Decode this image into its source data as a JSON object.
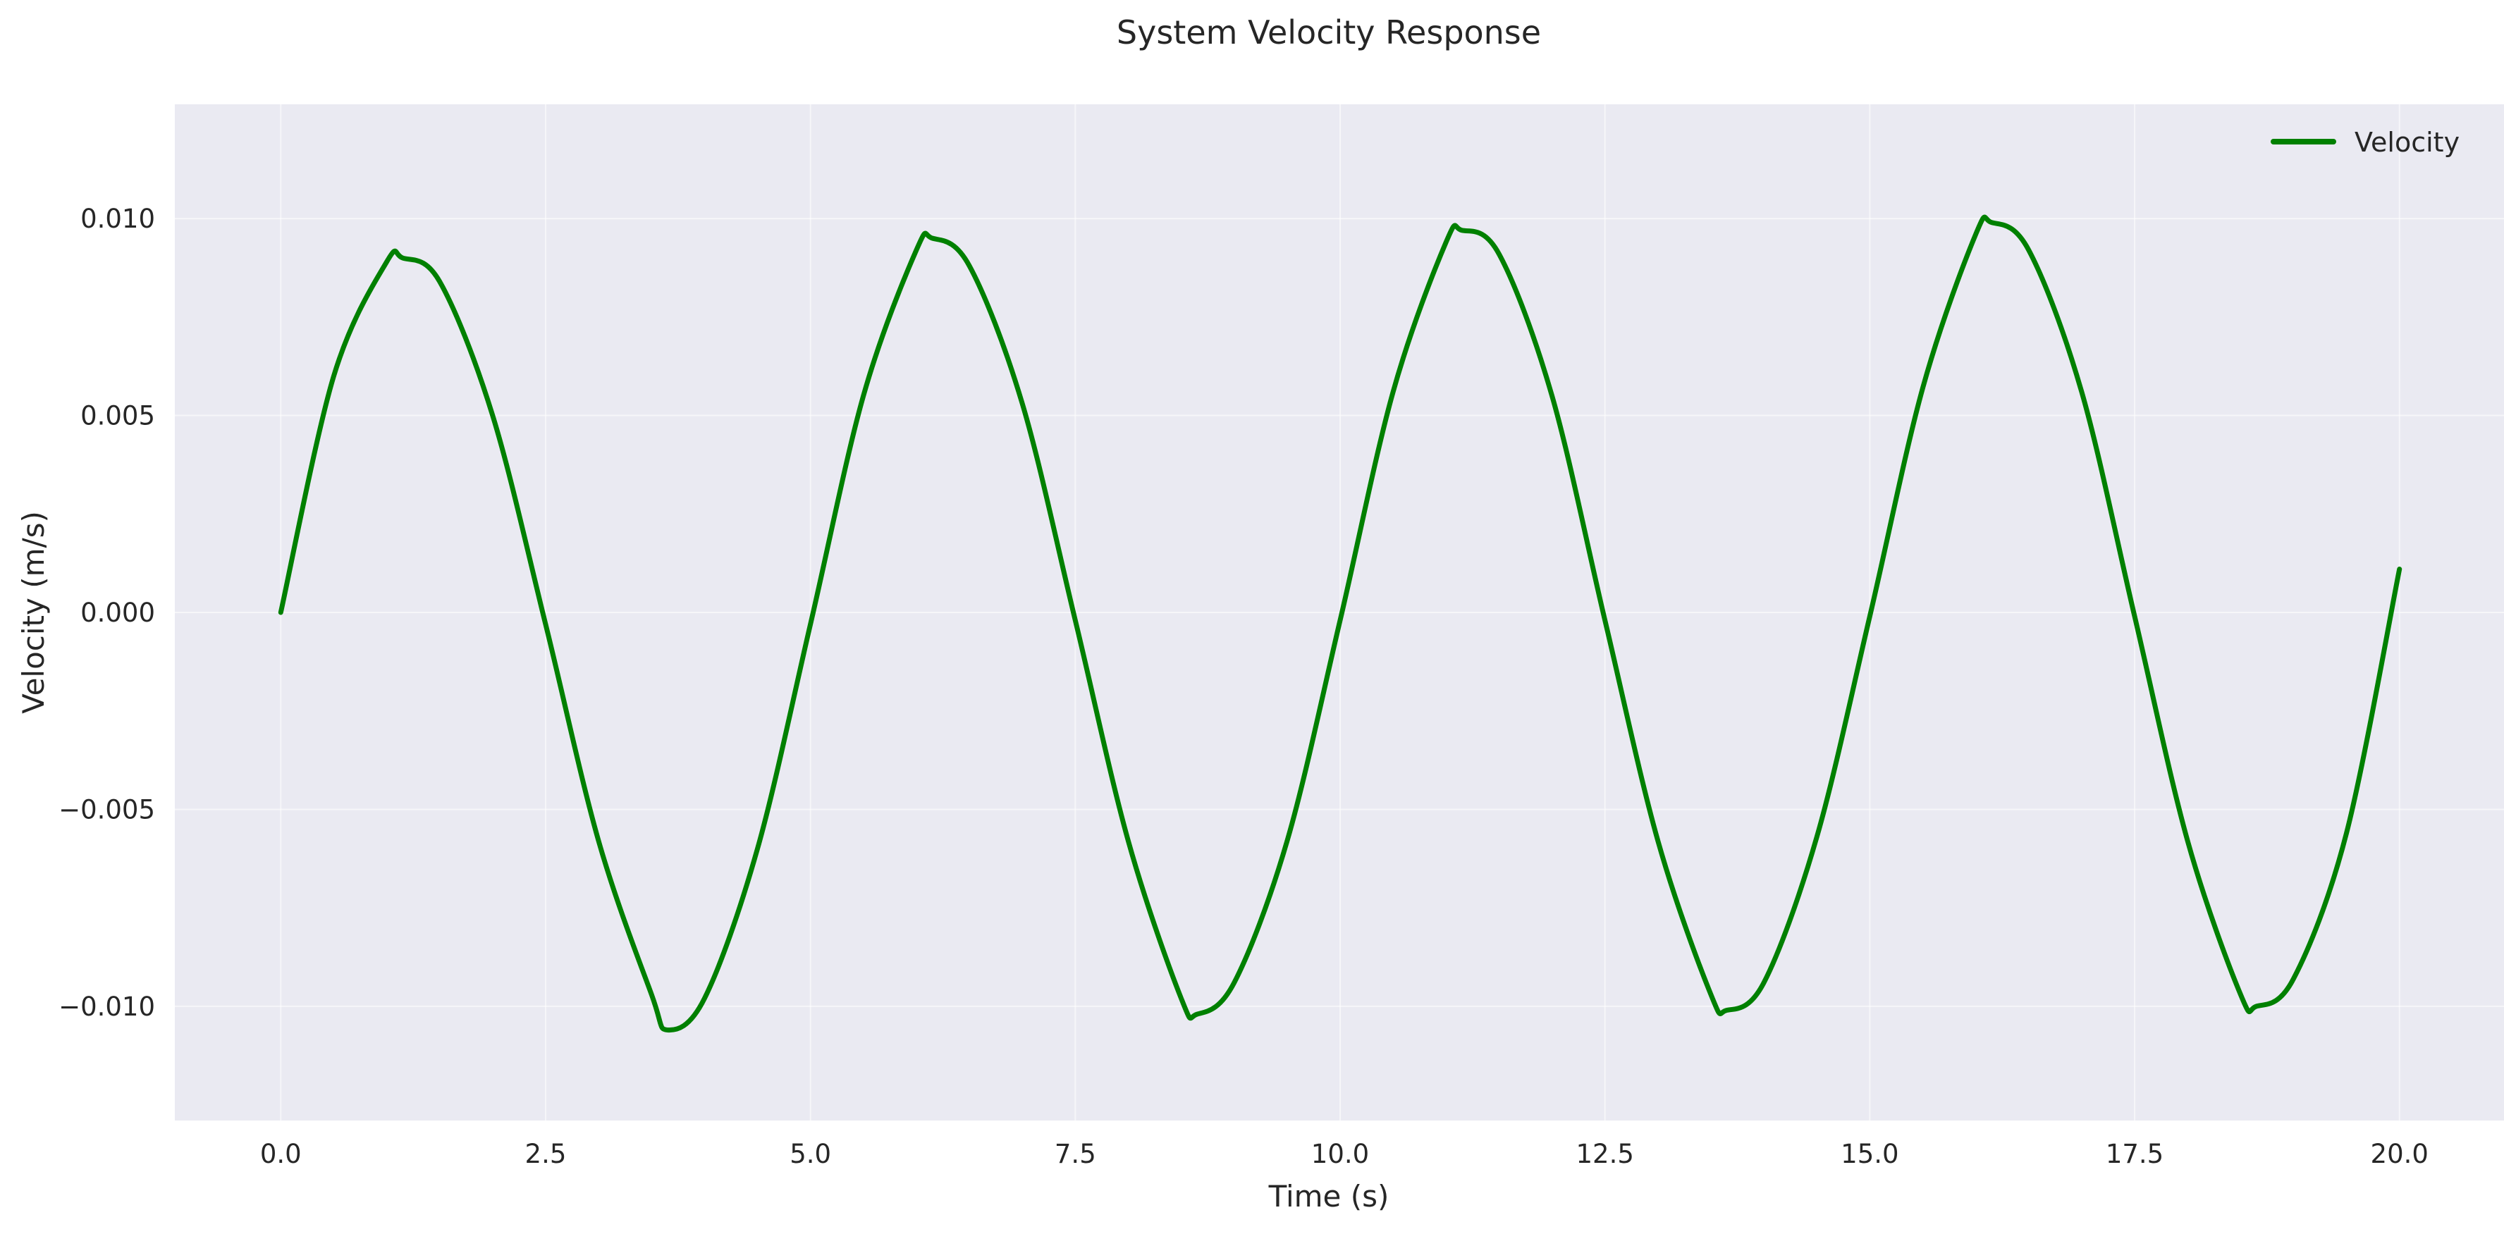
{
  "chart_data": {
    "type": "line",
    "title": "System Velocity Response",
    "xlabel": "Time (s)",
    "ylabel": "Velocity (m/s)",
    "xlim": [
      -1.0,
      21.0
    ],
    "ylim": [
      -0.0129,
      0.0129
    ],
    "xticks": [
      0.0,
      2.5,
      5.0,
      7.5,
      10.0,
      12.5,
      15.0,
      17.5,
      20.0
    ],
    "xtick_labels": [
      "0.0",
      "2.5",
      "5.0",
      "7.5",
      "10.0",
      "12.5",
      "15.0",
      "17.5",
      "20.0"
    ],
    "yticks": [
      -0.01,
      -0.005,
      0.0,
      0.005,
      0.01
    ],
    "ytick_labels": [
      "−0.010",
      "−0.005",
      "0.000",
      "0.005",
      "0.010"
    ],
    "grid": true,
    "legend_position": "top-right",
    "background_color": "#eaeaf2",
    "series": [
      {
        "name": "Velocity",
        "color": "#008000",
        "x": [
          0.0,
          0.5,
          1.0,
          1.15,
          1.5,
          2.0,
          2.5,
          3.0,
          3.5,
          3.65,
          4.0,
          4.5,
          5.0,
          5.5,
          6.0,
          6.15,
          6.5,
          7.0,
          7.5,
          8.0,
          8.5,
          8.65,
          9.0,
          9.5,
          10.0,
          10.5,
          11.0,
          11.15,
          11.5,
          12.0,
          12.5,
          13.0,
          13.5,
          13.65,
          14.0,
          14.5,
          15.0,
          15.5,
          16.0,
          16.15,
          16.5,
          17.0,
          17.5,
          18.0,
          18.5,
          18.65,
          19.0,
          19.5,
          20.0
        ],
        "y": [
          0.0,
          0.006,
          0.0089,
          0.009,
          0.0084,
          0.005,
          -0.0003,
          -0.0058,
          -0.0097,
          -0.0106,
          -0.0098,
          -0.006,
          -0.0003,
          0.0055,
          0.0092,
          0.0095,
          0.0088,
          0.0053,
          -0.0002,
          -0.0058,
          -0.0098,
          -0.0102,
          -0.0094,
          -0.0058,
          -0.0002,
          0.0056,
          0.0094,
          0.0097,
          0.0091,
          0.0055,
          -0.0002,
          -0.0058,
          -0.0097,
          -0.0101,
          -0.0094,
          -0.0057,
          -0.0001,
          0.0057,
          0.0096,
          0.0099,
          0.0092,
          0.0056,
          -0.0001,
          -0.0058,
          -0.0097,
          -0.01,
          -0.0093,
          -0.0056,
          0.0011
        ]
      }
    ]
  }
}
